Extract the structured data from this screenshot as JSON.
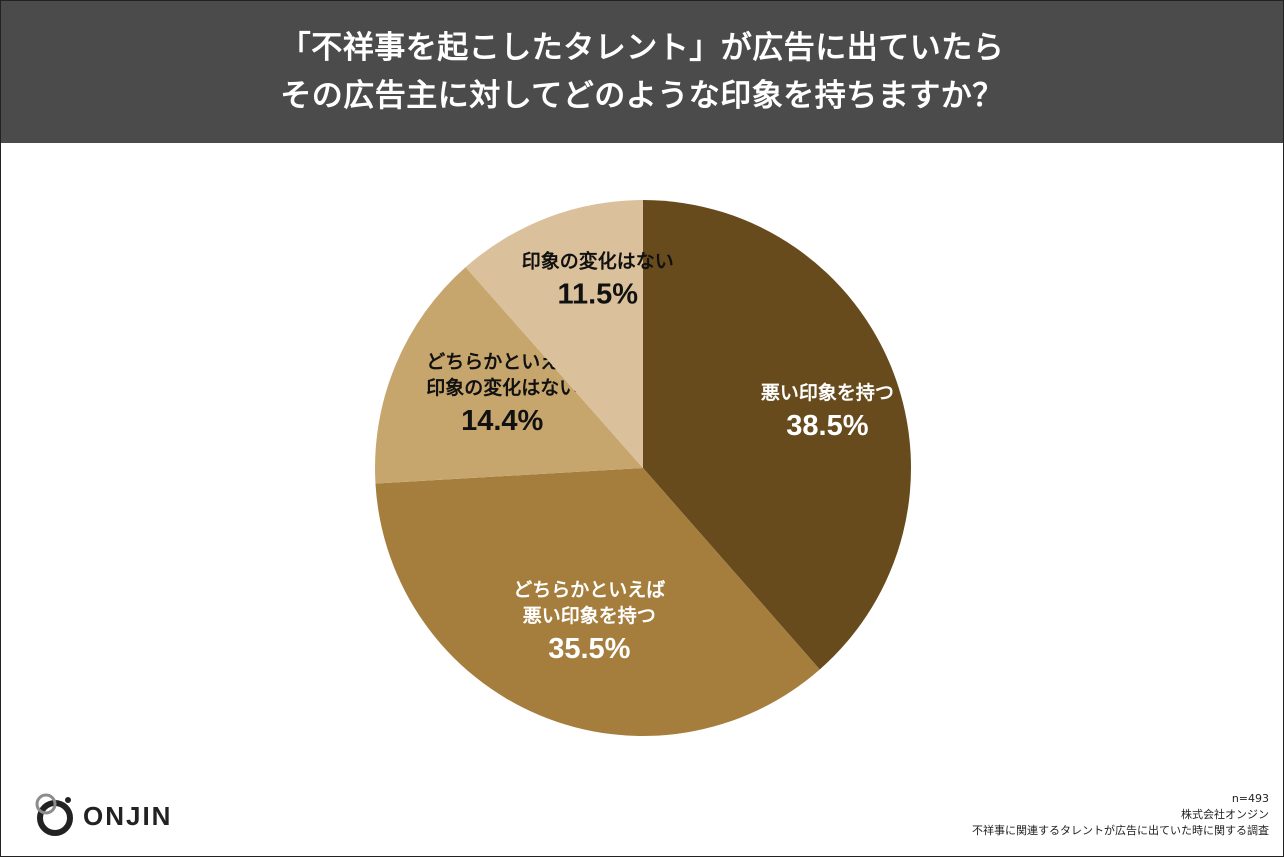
{
  "header": {
    "title_line1": "「不祥事を起こしたタレント」が広告に出ていたら",
    "title_line2": "その広告主に対してどのような印象を持ちますか？"
  },
  "chart_data": {
    "type": "pie",
    "slices": [
      {
        "lines": [
          "悪い印象を持つ"
        ],
        "value": 38.5,
        "value_label": "38.5%",
        "color": "#684b1d",
        "text_color": "#ffffff"
      },
      {
        "lines": [
          "どちらかといえば",
          "悪い印象を持つ"
        ],
        "value": 35.5,
        "value_label": "35.5%",
        "color": "#a57e3e",
        "text_color": "#ffffff"
      },
      {
        "lines": [
          "どちらかといえば",
          "印象の変化はない"
        ],
        "value": 14.4,
        "value_label": "14.4%",
        "color": "#c7a66d",
        "text_color": "#111111"
      },
      {
        "lines": [
          "印象の変化はない"
        ],
        "value": 11.5,
        "value_label": "11.5%",
        "color": "#dbc19b",
        "text_color": "#111111"
      }
    ],
    "start": "12 o'clock",
    "direction": "clockwise"
  },
  "logo": {
    "text": "ONJIN"
  },
  "footer": {
    "sample": "n=493",
    "company": "株式会社オンジン",
    "survey": "不祥事に関連するタレントが広告に出ていた時に関する調査"
  }
}
